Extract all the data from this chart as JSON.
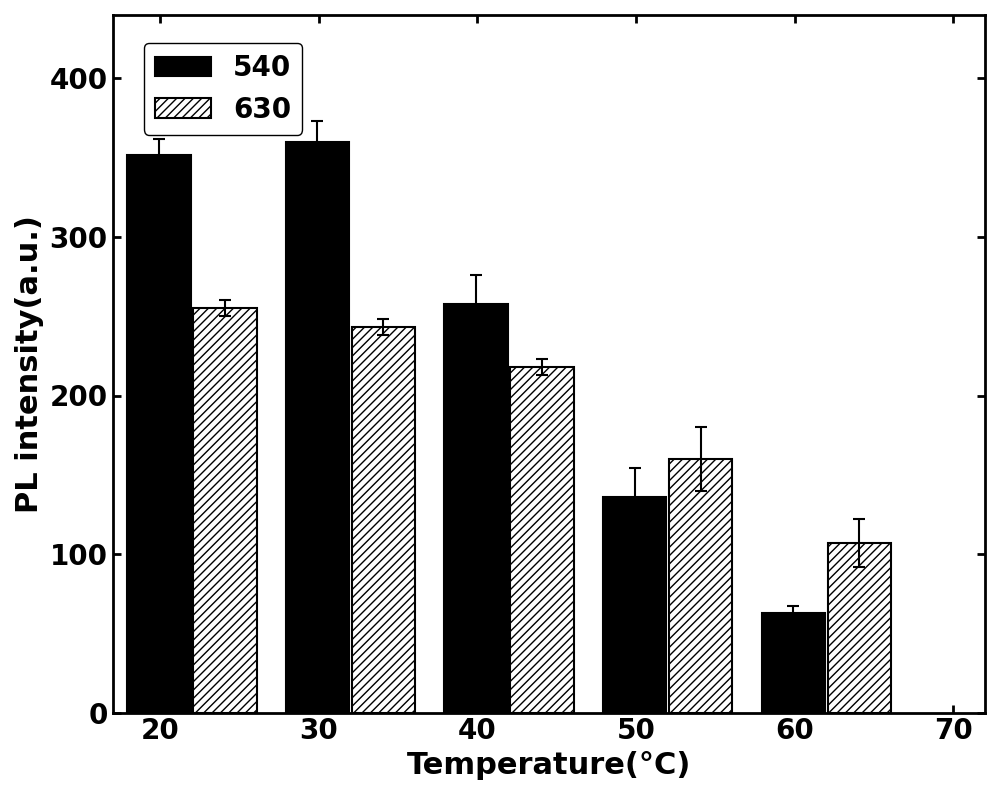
{
  "temperatures": [
    22,
    32,
    42,
    52,
    62
  ],
  "temp_last_630": 67,
  "series_540": [
    352,
    360,
    258,
    136,
    63
  ],
  "series_630": [
    255,
    243,
    218,
    160,
    107
  ],
  "errors_540": [
    10,
    13,
    18,
    18,
    4
  ],
  "errors_630": [
    5,
    5,
    5,
    20,
    15
  ],
  "bar_width": 4.0,
  "xlabel": "Temperature(°C)",
  "ylabel": "PL intensity(a.u.)",
  "xlim": [
    17,
    72
  ],
  "ylim": [
    0,
    440
  ],
  "yticks": [
    0,
    100,
    200,
    300,
    400
  ],
  "xticks": [
    20,
    30,
    40,
    50,
    60,
    70
  ],
  "legend_labels": [
    "540",
    "630"
  ],
  "axis_fontsize": 22,
  "tick_fontsize": 20,
  "legend_fontsize": 20,
  "color_540": "#000000",
  "hatch_630": "////",
  "background_color": "#ffffff"
}
